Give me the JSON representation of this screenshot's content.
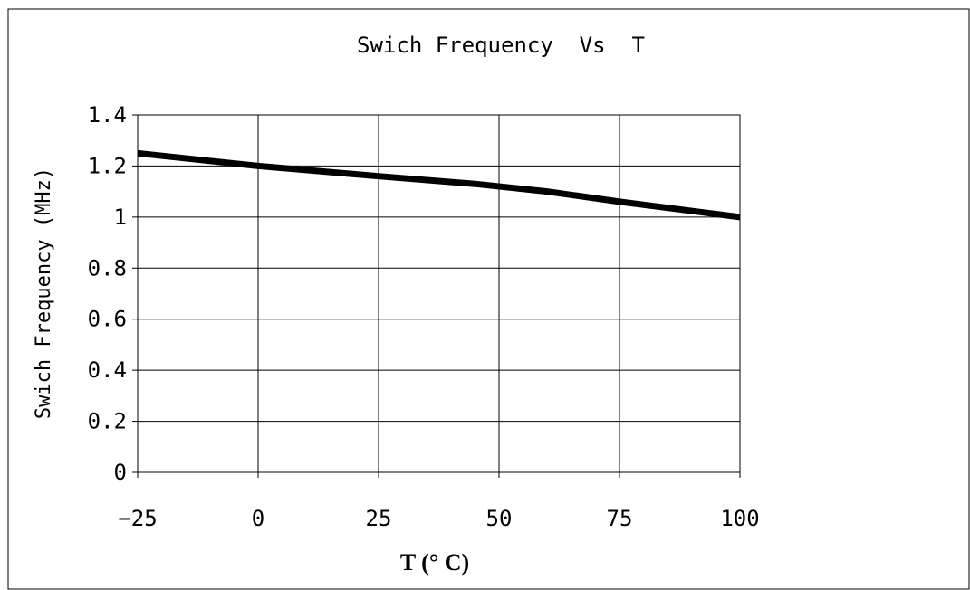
{
  "chart_data": {
    "type": "line",
    "title": "Swich Frequency  Vs  T",
    "xlabel": "T (° C)",
    "ylabel": "Swich Frequency (MHz)",
    "x_ticks": [
      "-25",
      "0",
      "25",
      "50",
      "75",
      "100"
    ],
    "y_ticks": [
      "0",
      "0.2",
      "0.4",
      "0.6",
      "0.8",
      "1",
      "1.2",
      "1.4"
    ],
    "xlim": [
      -25,
      100
    ],
    "ylim": [
      0,
      1.4
    ],
    "grid": true,
    "series": [
      {
        "x": [
          -25,
          0,
          25,
          45,
          60,
          75,
          100
        ],
        "y": [
          1.25,
          1.2,
          1.16,
          1.13,
          1.1,
          1.06,
          1.0
        ]
      }
    ],
    "line_color": "#000000"
  }
}
